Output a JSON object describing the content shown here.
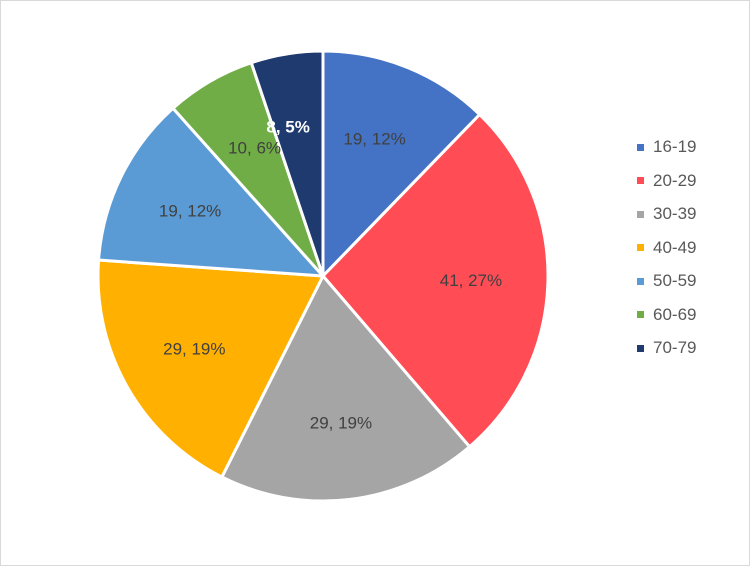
{
  "chart_data": {
    "type": "pie",
    "categories": [
      "16-19",
      "20-29",
      "30-39",
      "40-49",
      "50-59",
      "60-69",
      "70-79"
    ],
    "values": [
      19,
      41,
      29,
      29,
      19,
      10,
      8
    ],
    "percent_labels": [
      "12%",
      "27%",
      "19%",
      "19%",
      "12%",
      "6%",
      "5%"
    ],
    "data_labels": [
      "19, 12%",
      "41, 27%",
      "29, 19%",
      "29, 19%",
      "19, 12%",
      "10, 6%",
      "8, 5%"
    ],
    "colors": [
      "#4472c4",
      "#ff4c55",
      "#a5a5a5",
      "#ffb000",
      "#5b9bd5",
      "#70ad47",
      "#1f3a6e"
    ],
    "label_colors": [
      "#404040",
      "#404040",
      "#404040",
      "#404040",
      "#404040",
      "#404040",
      "#ffffff"
    ],
    "start_angle_deg": 0,
    "direction": "clockwise",
    "legend_position": "right",
    "title": "",
    "xlabel": "",
    "ylabel": ""
  }
}
